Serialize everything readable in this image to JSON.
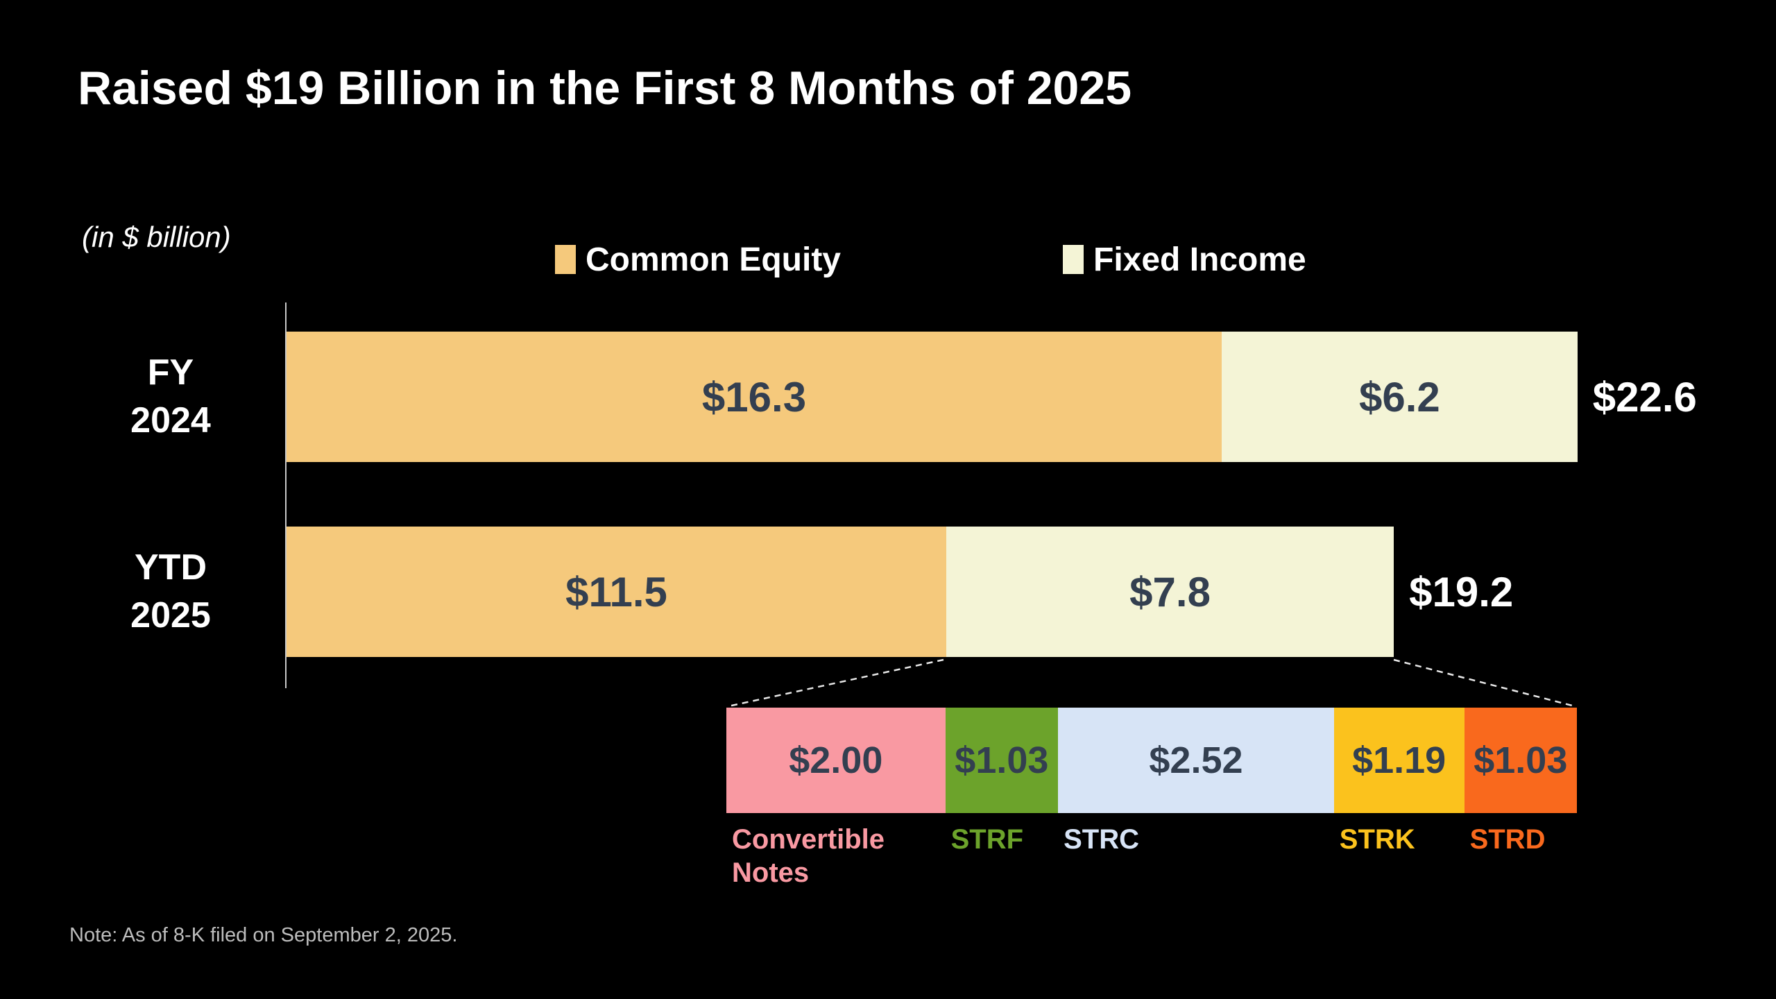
{
  "title": "Raised $19 Billion in the First 8 Months of 2025",
  "units_label": "(in $ billion)",
  "legend": [
    {
      "label": "Common Equity",
      "color": "#F5C97C"
    },
    {
      "label": "Fixed Income",
      "color": "#F4F4D6"
    }
  ],
  "note": "Note: As of 8-K filed on September 2, 2025.",
  "chart_data": {
    "type": "bar",
    "orientation": "horizontal",
    "stacked": true,
    "unit": "$ billion",
    "title": "Raised $19 Billion in the First 8 Months of 2025",
    "categories": [
      "FY 2024",
      "YTD 2025"
    ],
    "category_lines": [
      [
        "FY",
        "2024"
      ],
      [
        "YTD",
        "2025"
      ]
    ],
    "series": [
      {
        "name": "Common Equity",
        "color": "#F5C97C",
        "values": [
          16.3,
          11.5
        ],
        "labels": [
          "$16.3",
          "$11.5"
        ]
      },
      {
        "name": "Fixed Income",
        "color": "#F4F4D6",
        "values": [
          6.2,
          7.8
        ],
        "labels": [
          "$6.2",
          "$7.8"
        ]
      }
    ],
    "totals": [
      22.6,
      19.2
    ],
    "total_labels": [
      "$22.6",
      "$19.2"
    ],
    "value_label_color": "#333F50",
    "legend_position": "top",
    "grid": false,
    "breakdown": {
      "of": "YTD 2025 Fixed Income",
      "segments": [
        {
          "label": "Convertible Notes",
          "value": 2.0,
          "display": "$2.00",
          "color": "#F999A2"
        },
        {
          "label": "STRF",
          "value": 1.03,
          "display": "$1.03",
          "color": "#6CA32B"
        },
        {
          "label": "STRC",
          "value": 2.52,
          "display": "$2.52",
          "color": "#D7E4F6"
        },
        {
          "label": "STRK",
          "value": 1.19,
          "display": "$1.19",
          "color": "#FBC21D"
        },
        {
          "label": "STRD",
          "value": 1.03,
          "display": "$1.03",
          "color": "#F9691D"
        }
      ]
    }
  }
}
